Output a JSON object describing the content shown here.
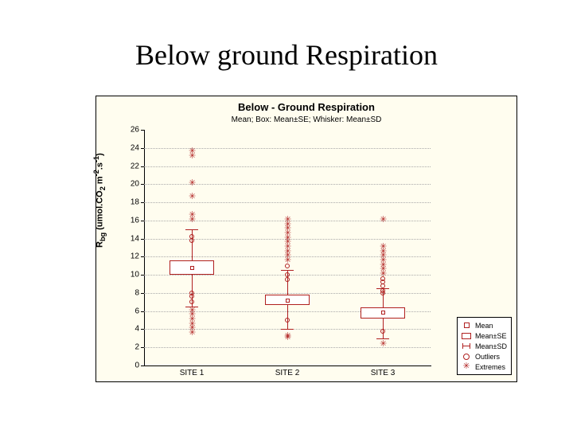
{
  "slide": {
    "title": "Below ground Respiration"
  },
  "chart": {
    "type": "boxplot",
    "title": "Below - Ground Respiration",
    "subtitle": "Mean; Box: Mean±SE; Whisker: Mean±SD",
    "background_color": "#fffdef",
    "series_color": "#b02020",
    "grid_color": "#aaaaaa",
    "ylabel_html": "R<sub>bg</sub> (umol.CO<sub>2</sub> m<sup>-2</sup>.s<sup>-1</sup>)",
    "y": {
      "min": 0,
      "max": 26,
      "step": 2
    },
    "x": {
      "labels": [
        "SITE 1",
        "SITE 2",
        "SITE 3"
      ]
    },
    "boxes": [
      {
        "mean": 10.8,
        "se_low": 10.0,
        "se_high": 11.6,
        "sd_low": 6.5,
        "sd_high": 15.0,
        "outliers": [
          7.0,
          7.6,
          8.0,
          13.8,
          14.2
        ],
        "extremes": [
          3.5,
          4.0,
          4.5,
          5.0,
          5.5,
          6.0,
          16.0,
          16.5,
          18.5,
          20.0,
          23.0,
          23.5
        ]
      },
      {
        "mean": 7.2,
        "se_low": 6.7,
        "se_high": 7.8,
        "sd_low": 4.0,
        "sd_high": 10.5,
        "outliers": [
          5.0,
          9.5,
          10.0,
          11.0
        ],
        "extremes": [
          3.0,
          3.2,
          11.5,
          12.0,
          12.5,
          13.0,
          13.5,
          14.0,
          14.5,
          15.0,
          15.5,
          16.0
        ]
      },
      {
        "mean": 5.8,
        "se_low": 5.2,
        "se_high": 6.4,
        "sd_low": 3.0,
        "sd_high": 8.5,
        "outliers": [
          3.8,
          8.0,
          8.3,
          8.8,
          9.2,
          9.6
        ],
        "extremes": [
          2.3,
          10.0,
          10.5,
          11.0,
          11.5,
          12.0,
          12.5,
          13.0,
          16.0
        ]
      }
    ],
    "legend": [
      {
        "sym": "sq",
        "label": "Mean"
      },
      {
        "sym": "box",
        "label": "Mean±SE"
      },
      {
        "sym": "whisk",
        "label": "Mean±SD"
      },
      {
        "sym": "circ",
        "label": "Outliers"
      },
      {
        "sym": "star",
        "label": "Extremes"
      }
    ]
  }
}
